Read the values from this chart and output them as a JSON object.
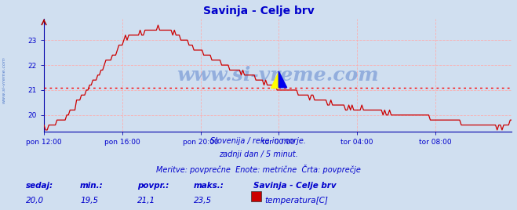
{
  "title": "Savinja - Celje brv",
  "title_color": "#0000cc",
  "bg_color": "#d0dff0",
  "plot_bg_color": "#d0dff0",
  "grid_color": "#ffaaaa",
  "avg_line_y": 21.1,
  "avg_line_color": "#ff0000",
  "line_color": "#cc0000",
  "line_width": 0.9,
  "ylim": [
    19.35,
    23.85
  ],
  "yticks": [
    20,
    21,
    22,
    23
  ],
  "xtick_labels": [
    "pon 12:00",
    "pon 16:00",
    "pon 20:00",
    "tor 00:00",
    "tor 04:00",
    "tor 08:00"
  ],
  "watermark": "www.si-vreme.com",
  "watermark_color": "#2255bb",
  "watermark_alpha": 0.35,
  "subtitle1": "Slovenija / reke in morje.",
  "subtitle2": "zadnji dan / 5 minut.",
  "subtitle3": "Meritve: povprečne  Enote: metrične  Črta: povprečje",
  "subtitle_color": "#0000cc",
  "footer_labels": [
    "sedaj:",
    "min.:",
    "povpr.:",
    "maks.:"
  ],
  "footer_values": [
    "20,0",
    "19,5",
    "21,1",
    "23,5"
  ],
  "footer_station": "Savinja - Celje brv",
  "footer_legend": "temperatura[C]",
  "footer_legend_color": "#cc0000",
  "footer_color": "#0000cc",
  "sidewater": "www.si-vreme.com",
  "sidewater_color": "#2255bb",
  "n_points": 288,
  "keypoints_x": [
    0,
    3,
    12,
    22,
    35,
    50,
    62,
    70,
    80,
    96,
    108,
    118,
    130,
    144,
    155,
    165,
    175,
    192,
    210,
    230,
    250,
    265,
    275,
    284,
    288
  ],
  "keypoints_y": [
    19.45,
    19.5,
    19.8,
    20.6,
    21.8,
    23.05,
    23.35,
    23.45,
    23.3,
    22.5,
    22.1,
    21.8,
    21.5,
    21.1,
    20.9,
    20.7,
    20.5,
    20.25,
    20.1,
    19.95,
    19.75,
    19.6,
    19.55,
    19.6,
    19.95
  ]
}
